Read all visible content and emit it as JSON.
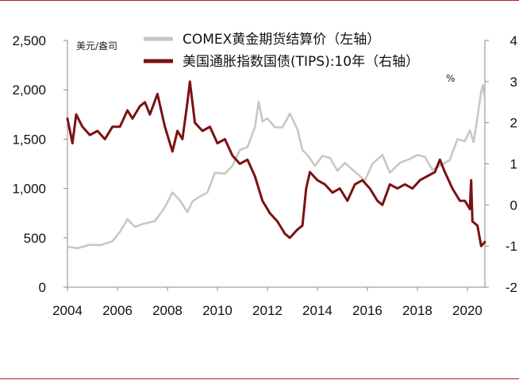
{
  "chart_data": {
    "type": "line",
    "title": "",
    "left_unit": "美元/盎司",
    "right_unit": "%",
    "x_range": [
      2004,
      2020.7
    ],
    "x_ticks": [
      "2004",
      "2006",
      "2008",
      "2010",
      "2012",
      "2014",
      "2016",
      "2018",
      "2020"
    ],
    "y_left": {
      "min": 0,
      "max": 2500,
      "ticks": [
        "0",
        "500",
        "1,000",
        "1,500",
        "2,000",
        "2,500"
      ]
    },
    "y_right": {
      "min": -2,
      "max": 4,
      "ticks": [
        "-2",
        "-1",
        "0",
        "1",
        "2",
        "3",
        "4"
      ]
    },
    "grid": false,
    "legend_position": "top-right",
    "series": [
      {
        "name": "COMEX黄金期货结算价（左轴）",
        "axis": "left",
        "color": "#c8c8c2",
        "points": [
          [
            2004.0,
            410
          ],
          [
            2004.4,
            395
          ],
          [
            2004.9,
            430
          ],
          [
            2005.3,
            425
          ],
          [
            2005.8,
            465
          ],
          [
            2006.1,
            560
          ],
          [
            2006.4,
            690
          ],
          [
            2006.7,
            610
          ],
          [
            2007.0,
            640
          ],
          [
            2007.5,
            670
          ],
          [
            2007.9,
            810
          ],
          [
            2008.2,
            960
          ],
          [
            2008.5,
            880
          ],
          [
            2008.8,
            760
          ],
          [
            2009.0,
            870
          ],
          [
            2009.3,
            920
          ],
          [
            2009.6,
            960
          ],
          [
            2009.9,
            1160
          ],
          [
            2010.3,
            1150
          ],
          [
            2010.6,
            1230
          ],
          [
            2010.9,
            1390
          ],
          [
            2011.2,
            1420
          ],
          [
            2011.5,
            1620
          ],
          [
            2011.65,
            1880
          ],
          [
            2011.8,
            1680
          ],
          [
            2012.0,
            1710
          ],
          [
            2012.3,
            1620
          ],
          [
            2012.6,
            1620
          ],
          [
            2012.9,
            1760
          ],
          [
            2013.2,
            1600
          ],
          [
            2013.4,
            1390
          ],
          [
            2013.6,
            1340
          ],
          [
            2013.9,
            1230
          ],
          [
            2014.2,
            1330
          ],
          [
            2014.5,
            1310
          ],
          [
            2014.8,
            1180
          ],
          [
            2015.1,
            1260
          ],
          [
            2015.5,
            1170
          ],
          [
            2015.9,
            1080
          ],
          [
            2016.2,
            1250
          ],
          [
            2016.6,
            1340
          ],
          [
            2016.9,
            1160
          ],
          [
            2017.3,
            1260
          ],
          [
            2017.7,
            1300
          ],
          [
            2018.0,
            1340
          ],
          [
            2018.3,
            1320
          ],
          [
            2018.6,
            1190
          ],
          [
            2018.9,
            1230
          ],
          [
            2019.3,
            1290
          ],
          [
            2019.6,
            1500
          ],
          [
            2019.9,
            1480
          ],
          [
            2020.1,
            1590
          ],
          [
            2020.25,
            1470
          ],
          [
            2020.4,
            1720
          ],
          [
            2020.55,
            1980
          ],
          [
            2020.62,
            2050
          ],
          [
            2020.7,
            1900
          ]
        ]
      },
      {
        "name": "美国通胀指数国债(TIPS):10年（右轴）",
        "axis": "right",
        "color": "#7b1113",
        "points": [
          [
            2004.0,
            2.1
          ],
          [
            2004.2,
            1.5
          ],
          [
            2004.35,
            2.2
          ],
          [
            2004.6,
            1.9
          ],
          [
            2004.9,
            1.7
          ],
          [
            2005.2,
            1.8
          ],
          [
            2005.5,
            1.6
          ],
          [
            2005.8,
            1.9
          ],
          [
            2006.1,
            1.9
          ],
          [
            2006.4,
            2.3
          ],
          [
            2006.6,
            2.1
          ],
          [
            2006.9,
            2.4
          ],
          [
            2007.1,
            2.5
          ],
          [
            2007.3,
            2.2
          ],
          [
            2007.6,
            2.7
          ],
          [
            2007.9,
            1.9
          ],
          [
            2008.2,
            1.3
          ],
          [
            2008.4,
            1.8
          ],
          [
            2008.6,
            1.6
          ],
          [
            2008.8,
            2.5
          ],
          [
            2008.9,
            3.0
          ],
          [
            2009.1,
            2.0
          ],
          [
            2009.4,
            1.8
          ],
          [
            2009.7,
            1.9
          ],
          [
            2010.0,
            1.5
          ],
          [
            2010.3,
            1.6
          ],
          [
            2010.6,
            1.2
          ],
          [
            2010.9,
            1.0
          ],
          [
            2011.2,
            1.1
          ],
          [
            2011.5,
            0.7
          ],
          [
            2011.8,
            0.1
          ],
          [
            2012.1,
            -0.2
          ],
          [
            2012.4,
            -0.4
          ],
          [
            2012.7,
            -0.7
          ],
          [
            2012.9,
            -0.8
          ],
          [
            2013.2,
            -0.6
          ],
          [
            2013.4,
            -0.5
          ],
          [
            2013.55,
            0.4
          ],
          [
            2013.7,
            0.8
          ],
          [
            2014.0,
            0.6
          ],
          [
            2014.3,
            0.5
          ],
          [
            2014.6,
            0.3
          ],
          [
            2014.9,
            0.4
          ],
          [
            2015.2,
            0.1
          ],
          [
            2015.5,
            0.5
          ],
          [
            2015.8,
            0.6
          ],
          [
            2016.1,
            0.4
          ],
          [
            2016.4,
            0.1
          ],
          [
            2016.6,
            0.0
          ],
          [
            2016.9,
            0.5
          ],
          [
            2017.2,
            0.4
          ],
          [
            2017.5,
            0.5
          ],
          [
            2017.8,
            0.4
          ],
          [
            2018.1,
            0.6
          ],
          [
            2018.4,
            0.7
          ],
          [
            2018.7,
            0.8
          ],
          [
            2018.9,
            1.1
          ],
          [
            2019.1,
            0.8
          ],
          [
            2019.4,
            0.4
          ],
          [
            2019.7,
            0.1
          ],
          [
            2019.9,
            0.1
          ],
          [
            2020.1,
            -0.1
          ],
          [
            2020.15,
            0.6
          ],
          [
            2020.2,
            -0.4
          ],
          [
            2020.4,
            -0.5
          ],
          [
            2020.55,
            -1.0
          ],
          [
            2020.7,
            -0.9
          ]
        ]
      }
    ]
  }
}
